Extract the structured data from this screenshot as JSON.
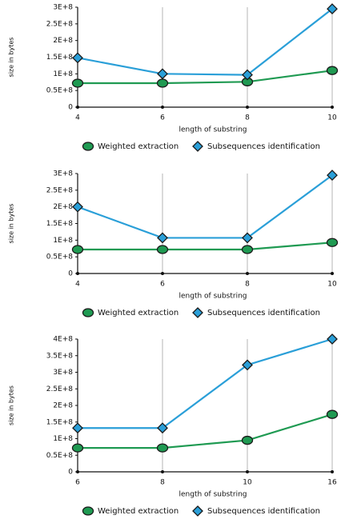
{
  "chart_data": [
    {
      "type": "line",
      "x_label": "length of substring",
      "y_label": "size in bytes",
      "categories": [
        "4",
        "6",
        "8",
        "10"
      ],
      "series": [
        {
          "name": "Weighted extraction",
          "color": "#1f9a52",
          "marker": "circle",
          "values": [
            72000000,
            72000000,
            76000000,
            110000000
          ]
        },
        {
          "name": "Subsequences identification",
          "color": "#2a9fd8",
          "marker": "diamond",
          "values": [
            148000000,
            100000000,
            97000000,
            295000000
          ]
        }
      ],
      "ylim": [
        0,
        300000000
      ],
      "yticks": [
        0,
        {
          "value": 50000000,
          "label": "0.5E+8"
        },
        {
          "value": 100000000,
          "label": "1E+8"
        },
        {
          "value": 150000000,
          "label": "1.5E+8"
        },
        {
          "value": 200000000,
          "label": "2E+8"
        },
        {
          "value": 250000000,
          "label": "2.5E+8"
        },
        {
          "value": 300000000,
          "label": "3E+8"
        }
      ],
      "grid": "x"
    },
    {
      "type": "line",
      "x_label": "length of substring",
      "y_label": "size in bytes",
      "categories": [
        "4",
        "6",
        "8",
        "10"
      ],
      "series": [
        {
          "name": "Weighted extraction",
          "color": "#1f9a52",
          "marker": "circle",
          "values": [
            72000000,
            72000000,
            72000000,
            93000000
          ]
        },
        {
          "name": "Subsequences identification",
          "color": "#2a9fd8",
          "marker": "diamond",
          "values": [
            200000000,
            107000000,
            107000000,
            295000000
          ]
        }
      ],
      "ylim": [
        0,
        300000000
      ],
      "yticks": [
        0,
        {
          "value": 50000000,
          "label": "0.5E+8"
        },
        {
          "value": 100000000,
          "label": "1E+8"
        },
        {
          "value": 150000000,
          "label": "1.5E+8"
        },
        {
          "value": 200000000,
          "label": "2E+8"
        },
        {
          "value": 250000000,
          "label": "2.5E+8"
        },
        {
          "value": 300000000,
          "label": "3E+8"
        }
      ],
      "grid": "x"
    },
    {
      "type": "line",
      "x_label": "length of substring",
      "y_label": "size in bytes",
      "categories": [
        "6",
        "8",
        "10",
        "16"
      ],
      "series": [
        {
          "name": "Weighted extraction",
          "color": "#1f9a52",
          "marker": "circle",
          "values": [
            72000000,
            72000000,
            95000000,
            173000000
          ]
        },
        {
          "name": "Subsequences identification",
          "color": "#2a9fd8",
          "marker": "diamond",
          "values": [
            132000000,
            132000000,
            322000000,
            400000000
          ]
        }
      ],
      "ylim": [
        0,
        400000000
      ],
      "yticks": [
        0,
        {
          "value": 50000000,
          "label": "0.5E+8"
        },
        {
          "value": 100000000,
          "label": "1E+8"
        },
        {
          "value": 150000000,
          "label": "1.5E+8"
        },
        {
          "value": 200000000,
          "label": "2E+8"
        },
        {
          "value": 250000000,
          "label": "2.5E+8"
        },
        {
          "value": 300000000,
          "label": "3E+8"
        },
        {
          "value": 350000000,
          "label": "3.5E+8"
        },
        {
          "value": 400000000,
          "label": "4E+8"
        }
      ],
      "grid": "x"
    }
  ]
}
